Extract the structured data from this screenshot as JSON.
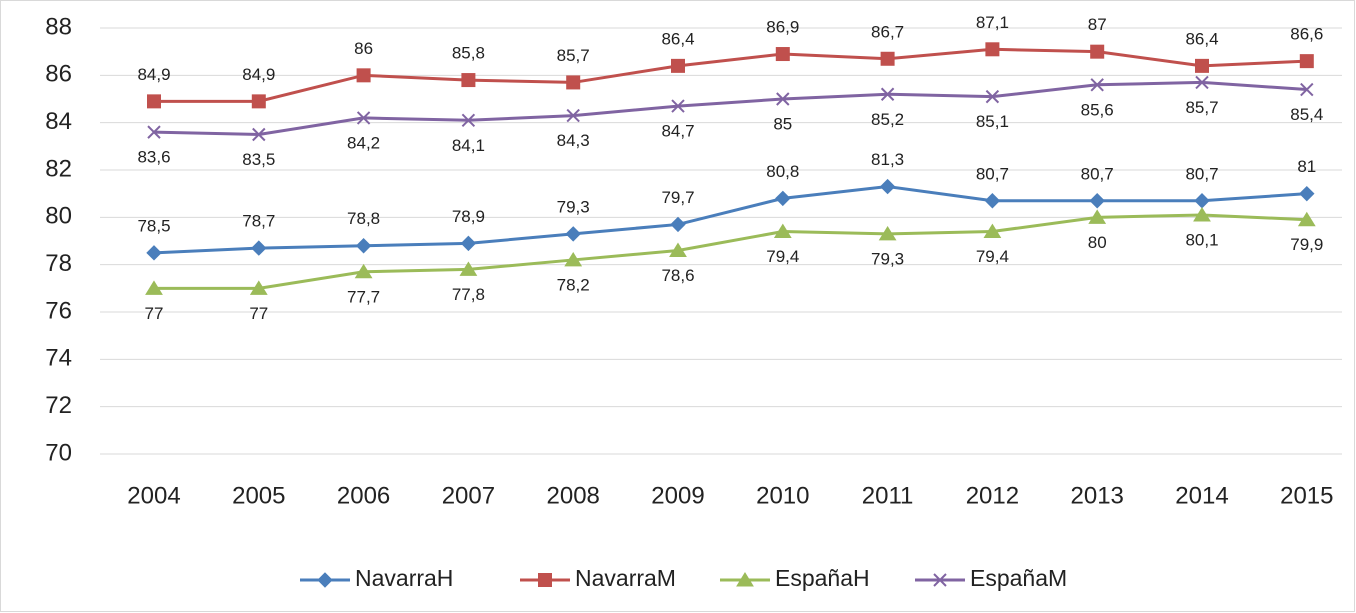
{
  "chart_data": {
    "type": "line",
    "categories": [
      "2004",
      "2005",
      "2006",
      "2007",
      "2008",
      "2009",
      "2010",
      "2011",
      "2012",
      "2013",
      "2014",
      "2015"
    ],
    "ylim": [
      70,
      88
    ],
    "yticks": [
      70,
      72,
      74,
      76,
      78,
      80,
      82,
      84,
      86,
      88
    ],
    "grid": true,
    "legend": "bottom",
    "series": [
      {
        "name": "NavarraH",
        "color": "#4a7ebb",
        "marker": "diamond",
        "values": [
          78.5,
          78.7,
          78.8,
          78.9,
          79.3,
          79.7,
          80.8,
          81.3,
          80.7,
          80.7,
          80.7,
          81
        ],
        "value_labels": [
          "78,5",
          "78,7",
          "78,8",
          "78,9",
          "79,3",
          "79,7",
          "80,8",
          "81,3",
          "80,7",
          "80,7",
          "80,7",
          "81"
        ]
      },
      {
        "name": "NavarraM",
        "color": "#c0504d",
        "marker": "square",
        "values": [
          84.9,
          84.9,
          86,
          85.8,
          85.7,
          86.4,
          86.9,
          86.7,
          87.1,
          87,
          86.4,
          86.6
        ],
        "value_labels": [
          "84,9",
          "84,9",
          "86",
          "85,8",
          "85,7",
          "86,4",
          "86,9",
          "86,7",
          "87,1",
          "87",
          "86,4",
          "86,6"
        ]
      },
      {
        "name": "EspañaH",
        "color": "#9bbb59",
        "marker": "triangle",
        "values": [
          77,
          77,
          77.7,
          77.8,
          78.2,
          78.6,
          79.4,
          79.3,
          79.4,
          80,
          80.1,
          79.9
        ],
        "value_labels": [
          "77",
          "77",
          "77,7",
          "77,8",
          "78,2",
          "78,6",
          "79,4",
          "79,3",
          "79,4",
          "80",
          "80,1",
          "79,9"
        ]
      },
      {
        "name": "EspañaM",
        "color": "#8064a2",
        "marker": "x",
        "values": [
          83.6,
          83.5,
          84.2,
          84.1,
          84.3,
          84.7,
          85,
          85.2,
          85.1,
          85.6,
          85.7,
          85.4
        ],
        "value_labels": [
          "83,6",
          "83,5",
          "84,2",
          "84,1",
          "84,3",
          "84,7",
          "85",
          "85,2",
          "85,1",
          "85,6",
          "85,7",
          "85,4"
        ]
      }
    ]
  }
}
